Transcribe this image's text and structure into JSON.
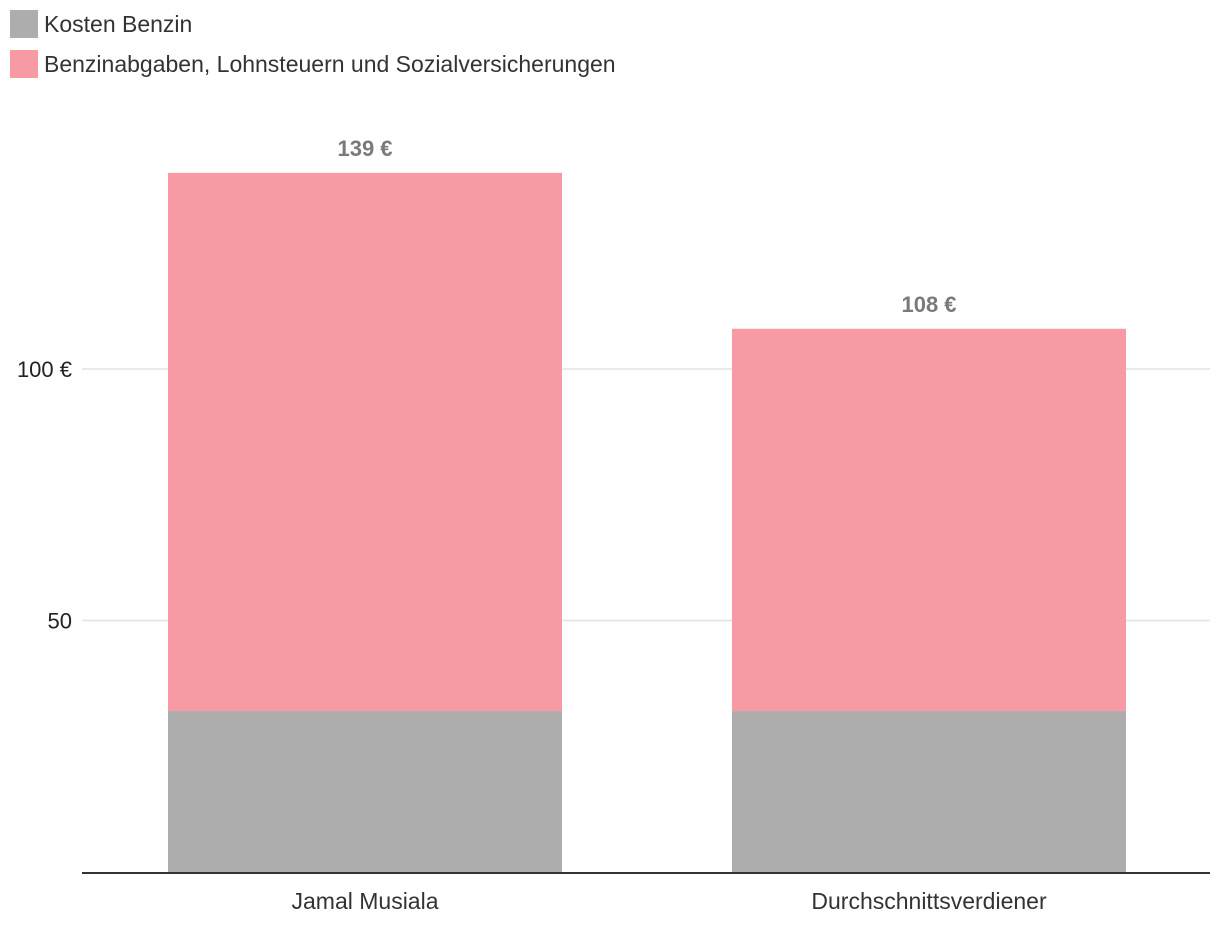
{
  "chart_data": {
    "type": "bar",
    "stacked": true,
    "categories": [
      "Jamal Musiala",
      "Durchschnittsverdiener"
    ],
    "series": [
      {
        "name": "Kosten Benzin",
        "color": "#adadad",
        "values": [
          32,
          32
        ]
      },
      {
        "name": "Benzinabgaben, Lohnsteuern und Sozialversicherungen",
        "color": "#f89aa4",
        "values": [
          107,
          76
        ]
      }
    ],
    "totals": [
      139,
      108
    ],
    "total_labels": [
      "139 €",
      "108 €"
    ],
    "y_ticks": [
      {
        "value": 50,
        "label": "50"
      },
      {
        "value": 100,
        "label": "100 €"
      }
    ],
    "ylim": [
      0,
      139
    ],
    "grid": true,
    "legend_position": "top-left",
    "title": "",
    "xlabel": "",
    "ylabel": ""
  }
}
